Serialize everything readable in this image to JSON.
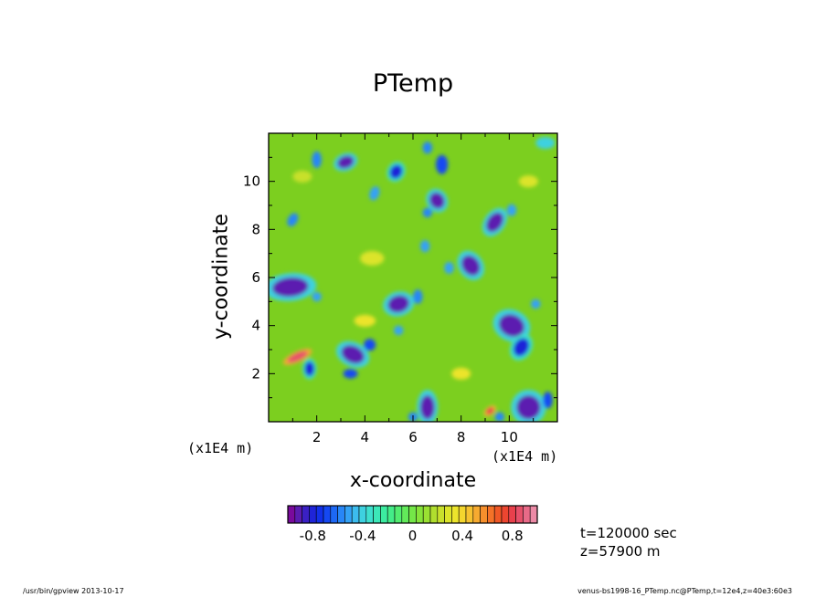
{
  "title": "PTemp",
  "footer": {
    "left": "/usr/bin/gpview   2013-10-17",
    "right": "venus-bs1998-16_PTemp.nc@PTemp,t=12e4,z=40e3:60e3"
  },
  "annotations": {
    "time": "t=120000 sec",
    "z": "z=57900  m"
  },
  "colors": {
    "background": "#7ccf1f",
    "frame": "#000000",
    "colorbar": [
      "#7a0a9c",
      "#5b1cb0",
      "#3a20c4",
      "#1f24d8",
      "#1230e8",
      "#1548f2",
      "#1d68f5",
      "#2886f7",
      "#34a2f5",
      "#3cbcee",
      "#3ed1e0",
      "#3ee0ce",
      "#3ce8b8",
      "#3cebA0",
      "#44ec88",
      "#52ec70",
      "#62ea5a",
      "#74e748",
      "#86e33a",
      "#9ae032",
      "#b0de2e",
      "#c8e02c",
      "#dce42a",
      "#ece42c",
      "#f4d62e",
      "#f6c230",
      "#f6aa30",
      "#f68f2c",
      "#f47228",
      "#f05826",
      "#ec4630",
      "#e8404c",
      "#e6506a",
      "#e86a88",
      "#ec8aa6"
    ]
  },
  "chart_data": {
    "type": "heatmap",
    "title": "PTemp",
    "xlabel": "x-coordinate",
    "ylabel": "y-coordinate",
    "xunit": "(x1E4 m)",
    "yunit": "(x1E4 m)",
    "xlim": [
      0,
      12
    ],
    "ylim": [
      0,
      12
    ],
    "xticks": [
      2,
      4,
      6,
      8,
      10
    ],
    "yticks": [
      2,
      4,
      6,
      8,
      10
    ],
    "xtick_labels": [
      "2",
      "4",
      "6",
      "8",
      "10"
    ],
    "ytick_labels": [
      "2",
      "4",
      "6",
      "8",
      "10"
    ],
    "background_value": 0,
    "features": [
      {
        "x": 3.2,
        "y": 10.8,
        "rx": 0.35,
        "ry": 0.25,
        "rot": -20,
        "value": -0.9
      },
      {
        "x": 2.0,
        "y": 10.9,
        "rx": 0.2,
        "ry": 0.35,
        "rot": 0,
        "value": -0.6
      },
      {
        "x": 5.3,
        "y": 10.4,
        "rx": 0.25,
        "ry": 0.3,
        "rot": 30,
        "value": -0.8
      },
      {
        "x": 7.2,
        "y": 10.7,
        "rx": 0.25,
        "ry": 0.4,
        "rot": 0,
        "value": -0.7
      },
      {
        "x": 6.6,
        "y": 11.4,
        "rx": 0.2,
        "ry": 0.25,
        "rot": 0,
        "value": -0.6
      },
      {
        "x": 4.4,
        "y": 9.5,
        "rx": 0.2,
        "ry": 0.3,
        "rot": 20,
        "value": -0.5
      },
      {
        "x": 6.6,
        "y": 8.7,
        "rx": 0.2,
        "ry": 0.2,
        "rot": 0,
        "value": -0.6
      },
      {
        "x": 6.5,
        "y": 7.3,
        "rx": 0.2,
        "ry": 0.25,
        "rot": 0,
        "value": -0.5
      },
      {
        "x": 7.0,
        "y": 9.2,
        "rx": 0.3,
        "ry": 0.35,
        "rot": -30,
        "value": -0.9
      },
      {
        "x": 9.4,
        "y": 8.3,
        "rx": 0.3,
        "ry": 0.45,
        "rot": 35,
        "value": -0.9
      },
      {
        "x": 10.1,
        "y": 8.8,
        "rx": 0.2,
        "ry": 0.25,
        "rot": 0,
        "value": -0.5
      },
      {
        "x": 1.0,
        "y": 8.4,
        "rx": 0.2,
        "ry": 0.3,
        "rot": 30,
        "value": -0.6
      },
      {
        "x": 0.9,
        "y": 5.6,
        "rx": 0.75,
        "ry": 0.4,
        "rot": -5,
        "value": -0.9
      },
      {
        "x": 2.0,
        "y": 5.2,
        "rx": 0.2,
        "ry": 0.2,
        "rot": 0,
        "value": -0.5
      },
      {
        "x": 5.4,
        "y": 4.9,
        "rx": 0.45,
        "ry": 0.35,
        "rot": -15,
        "value": -0.9
      },
      {
        "x": 6.2,
        "y": 5.2,
        "rx": 0.2,
        "ry": 0.3,
        "rot": 0,
        "value": -0.6
      },
      {
        "x": 8.4,
        "y": 6.5,
        "rx": 0.35,
        "ry": 0.45,
        "rot": -35,
        "value": -0.9
      },
      {
        "x": 7.5,
        "y": 6.4,
        "rx": 0.2,
        "ry": 0.25,
        "rot": 0,
        "value": -0.5
      },
      {
        "x": 10.1,
        "y": 4.0,
        "rx": 0.55,
        "ry": 0.45,
        "rot": 25,
        "value": -0.9
      },
      {
        "x": 10.5,
        "y": 3.1,
        "rx": 0.3,
        "ry": 0.4,
        "rot": 30,
        "value": -0.8
      },
      {
        "x": 11.1,
        "y": 4.9,
        "rx": 0.2,
        "ry": 0.2,
        "rot": 0,
        "value": -0.5
      },
      {
        "x": 3.5,
        "y": 2.8,
        "rx": 0.5,
        "ry": 0.35,
        "rot": 25,
        "value": -0.9
      },
      {
        "x": 4.2,
        "y": 3.2,
        "rx": 0.25,
        "ry": 0.25,
        "rot": 0,
        "value": -0.7
      },
      {
        "x": 1.7,
        "y": 2.2,
        "rx": 0.2,
        "ry": 0.3,
        "rot": 0,
        "value": -0.8
      },
      {
        "x": 3.4,
        "y": 2.0,
        "rx": 0.3,
        "ry": 0.2,
        "rot": 0,
        "value": -0.7
      },
      {
        "x": 6.6,
        "y": 0.6,
        "rx": 0.3,
        "ry": 0.5,
        "rot": 0,
        "value": -0.9
      },
      {
        "x": 6.0,
        "y": 0.2,
        "rx": 0.2,
        "ry": 0.2,
        "rot": 0,
        "value": -0.6
      },
      {
        "x": 10.8,
        "y": 0.6,
        "rx": 0.5,
        "ry": 0.5,
        "rot": 0,
        "value": -0.9
      },
      {
        "x": 11.6,
        "y": 0.9,
        "rx": 0.2,
        "ry": 0.35,
        "rot": 0,
        "value": -0.7
      },
      {
        "x": 9.6,
        "y": 0.2,
        "rx": 0.2,
        "ry": 0.2,
        "rot": 0,
        "value": -0.6
      },
      {
        "x": 5.4,
        "y": 3.8,
        "rx": 0.2,
        "ry": 0.2,
        "rot": 0,
        "value": -0.5
      },
      {
        "x": 1.2,
        "y": 2.7,
        "rx": 0.45,
        "ry": 0.15,
        "rot": -25,
        "value": 0.85
      },
      {
        "x": 9.2,
        "y": 0.45,
        "rx": 0.2,
        "ry": 0.12,
        "rot": -40,
        "value": 0.8
      },
      {
        "x": 11.5,
        "y": 11.6,
        "rx": 0.4,
        "ry": 0.25,
        "rot": 0,
        "value": -0.4
      },
      {
        "x": 10.8,
        "y": 10.0,
        "rx": 0.4,
        "ry": 0.25,
        "rot": 0,
        "value": 0.3
      },
      {
        "x": 4.3,
        "y": 6.8,
        "rx": 0.5,
        "ry": 0.3,
        "rot": 0,
        "value": 0.3
      },
      {
        "x": 4.0,
        "y": 4.2,
        "rx": 0.45,
        "ry": 0.25,
        "rot": 0,
        "value": 0.35
      },
      {
        "x": 8.0,
        "y": 2.0,
        "rx": 0.4,
        "ry": 0.25,
        "rot": 0,
        "value": 0.35
      },
      {
        "x": 1.4,
        "y": 10.2,
        "rx": 0.4,
        "ry": 0.25,
        "rot": 0,
        "value": 0.25
      }
    ],
    "colorbar": {
      "min": -1.0,
      "max": 1.0,
      "ticks": [
        -0.8,
        -0.4,
        0,
        0.4,
        0.8
      ],
      "tick_labels": [
        "-0.8",
        "-0.4",
        "0",
        "0.4",
        "0.8"
      ],
      "segments": 35
    }
  }
}
